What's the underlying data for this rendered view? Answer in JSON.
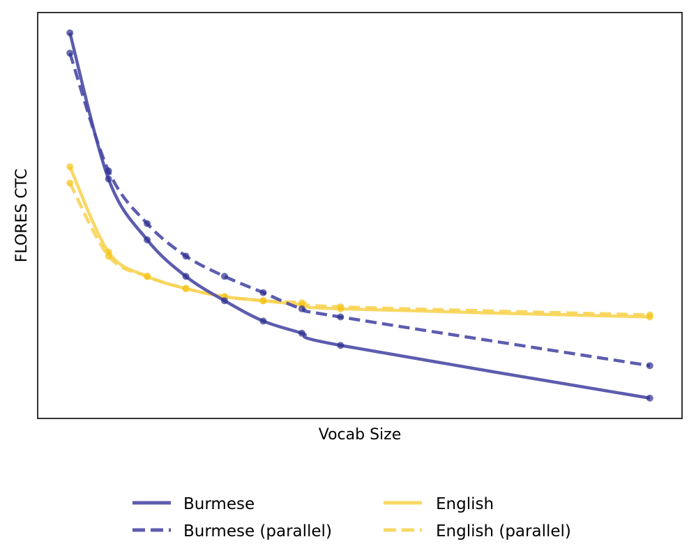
{
  "chart_data": {
    "type": "line",
    "title": "",
    "xlabel": "Vocab Size",
    "ylabel": "FLORES CTC",
    "xlim": [
      0,
      1
    ],
    "ylim": [
      0,
      1
    ],
    "grid": false,
    "legend_placement": "bottom-center",
    "x": [
      0.05,
      0.11,
      0.17,
      0.23,
      0.29,
      0.35,
      0.41,
      0.47,
      0.95
    ],
    "series": [
      {
        "name": "Burmese",
        "style": "solid",
        "color": "#4a4aa6",
        "values": [
          0.95,
          0.59,
          0.44,
          0.35,
          0.29,
          0.24,
          0.21,
          0.18,
          0.05
        ]
      },
      {
        "name": "Burmese (parallel)",
        "style": "dashed",
        "color": "#4a4aa6",
        "values": [
          0.9,
          0.61,
          0.48,
          0.4,
          0.35,
          0.31,
          0.27,
          0.25,
          0.13
        ]
      },
      {
        "name": "English",
        "style": "solid",
        "color": "#f7d454",
        "values": [
          0.62,
          0.41,
          0.35,
          0.32,
          0.3,
          0.29,
          0.28,
          0.27,
          0.25
        ]
      },
      {
        "name": "English (parallel)",
        "style": "dashed",
        "color": "#f7d454",
        "values": [
          0.58,
          0.4,
          0.35,
          0.32,
          0.3,
          0.29,
          0.285,
          0.275,
          0.255
        ]
      }
    ],
    "legend": [
      "Burmese",
      "Burmese (parallel)",
      "English",
      "English (parallel)"
    ]
  }
}
